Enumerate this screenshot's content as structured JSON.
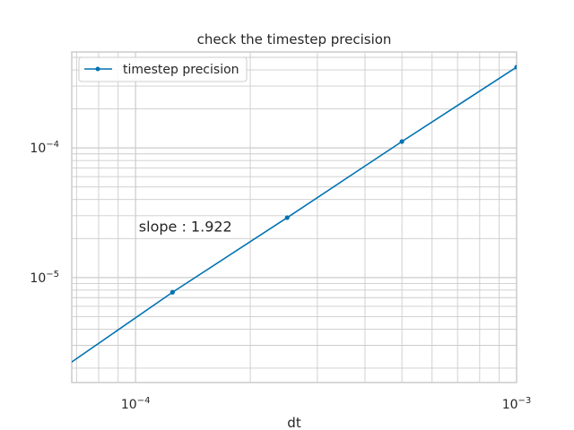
{
  "chart_data": {
    "type": "line",
    "title": "check the timestep precision",
    "xlabel": "dt",
    "ylabel": "",
    "xscale": "log",
    "yscale": "log",
    "xlim": [
      6.8e-05,
      0.001
    ],
    "ylim": [
      1.55e-06,
      0.00055
    ],
    "x_tick_labels": [
      {
        "value": 0.0001,
        "mantissa": "10",
        "exponent": "−4"
      },
      {
        "value": 0.001,
        "mantissa": "10",
        "exponent": "−3"
      }
    ],
    "y_tick_labels": [
      {
        "value": 1e-05,
        "mantissa": "10",
        "exponent": "−5"
      },
      {
        "value": 0.0001,
        "mantissa": "10",
        "exponent": "−4"
      }
    ],
    "grid": true,
    "grid_color": "#cccccc",
    "legend_position": "top-left",
    "series": [
      {
        "name": "timestep precision",
        "color": "#0072b2",
        "marker": "circle",
        "x": [
          6.25e-05,
          0.000125,
          0.00025,
          0.0005,
          0.001
        ],
        "y": [
          1.88e-06,
          7.7e-06,
          2.9e-05,
          0.000112,
          0.00042
        ]
      }
    ],
    "annotation": {
      "text": "slope : 1.922",
      "x": 0.000102,
      "y": 2.45e-05
    }
  }
}
